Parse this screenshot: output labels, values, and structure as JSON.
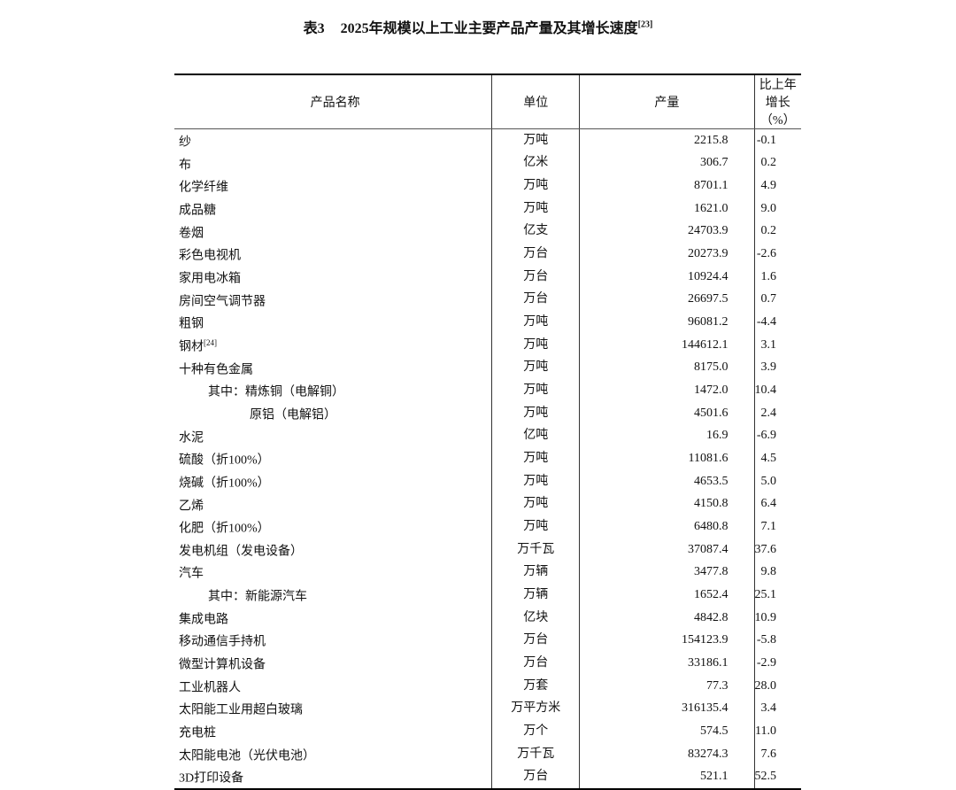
{
  "title": {
    "number": "表3",
    "text": "2025年规模以上工业主要产品产量及其增长速度",
    "note": "[23]"
  },
  "headers": [
    "产品名称",
    "单位",
    "产量",
    "比上年增长（%）"
  ],
  "rows": [
    {
      "name": "纱",
      "note": "",
      "indent": 0,
      "unit": "万吨",
      "output": "2215.8",
      "growth": "-0.1"
    },
    {
      "name": "布",
      "note": "",
      "indent": 0,
      "unit": "亿米",
      "output": "306.7",
      "growth": "0.2"
    },
    {
      "name": "化学纤维",
      "note": "",
      "indent": 0,
      "unit": "万吨",
      "output": "8701.1",
      "growth": "4.9"
    },
    {
      "name": "成品糖",
      "note": "",
      "indent": 0,
      "unit": "万吨",
      "output": "1621.0",
      "growth": "9.0"
    },
    {
      "name": "卷烟",
      "note": "",
      "indent": 0,
      "unit": "亿支",
      "output": "24703.9",
      "growth": "0.2"
    },
    {
      "name": "彩色电视机",
      "note": "",
      "indent": 0,
      "unit": "万台",
      "output": "20273.9",
      "growth": "-2.6"
    },
    {
      "name": "家用电冰箱",
      "note": "",
      "indent": 0,
      "unit": "万台",
      "output": "10924.4",
      "growth": "1.6"
    },
    {
      "name": "房间空气调节器",
      "note": "",
      "indent": 0,
      "unit": "万台",
      "output": "26697.5",
      "growth": "0.7"
    },
    {
      "name": "粗钢",
      "note": "",
      "indent": 0,
      "unit": "万吨",
      "output": "96081.2",
      "growth": "-4.4"
    },
    {
      "name": "钢材",
      "note": "[24]",
      "indent": 0,
      "unit": "万吨",
      "output": "144612.1",
      "growth": "3.1"
    },
    {
      "name": "十种有色金属",
      "note": "",
      "indent": 0,
      "unit": "万吨",
      "output": "8175.0",
      "growth": "3.9"
    },
    {
      "name": "其中：精炼铜（电解铜）",
      "note": "",
      "indent": 1,
      "unit": "万吨",
      "output": "1472.0",
      "growth": "10.4"
    },
    {
      "name": "原铝（电解铝）",
      "note": "",
      "indent": 2,
      "unit": "万吨",
      "output": "4501.6",
      "growth": "2.4"
    },
    {
      "name": "水泥",
      "note": "",
      "indent": 0,
      "unit": "亿吨",
      "output": "16.9",
      "growth": "-6.9"
    },
    {
      "name": "硫酸（折100%）",
      "note": "",
      "indent": 0,
      "unit": "万吨",
      "output": "11081.6",
      "growth": "4.5"
    },
    {
      "name": "烧碱（折100%）",
      "note": "",
      "indent": 0,
      "unit": "万吨",
      "output": "4653.5",
      "growth": "5.0"
    },
    {
      "name": "乙烯",
      "note": "",
      "indent": 0,
      "unit": "万吨",
      "output": "4150.8",
      "growth": "6.4"
    },
    {
      "name": "化肥（折100%）",
      "note": "",
      "indent": 0,
      "unit": "万吨",
      "output": "6480.8",
      "growth": "7.1"
    },
    {
      "name": "发电机组（发电设备）",
      "note": "",
      "indent": 0,
      "unit": "万千瓦",
      "output": "37087.4",
      "growth": "37.6"
    },
    {
      "name": "汽车",
      "note": "",
      "indent": 0,
      "unit": "万辆",
      "output": "3477.8",
      "growth": "9.8"
    },
    {
      "name": "其中：新能源汽车",
      "note": "",
      "indent": 1,
      "unit": "万辆",
      "output": "1652.4",
      "growth": "25.1"
    },
    {
      "name": "集成电路",
      "note": "",
      "indent": 0,
      "unit": "亿块",
      "output": "4842.8",
      "growth": "10.9"
    },
    {
      "name": "移动通信手持机",
      "note": "",
      "indent": 0,
      "unit": "万台",
      "output": "154123.9",
      "growth": "-5.8"
    },
    {
      "name": "微型计算机设备",
      "note": "",
      "indent": 0,
      "unit": "万台",
      "output": "33186.1",
      "growth": "-2.9"
    },
    {
      "name": "工业机器人",
      "note": "",
      "indent": 0,
      "unit": "万套",
      "output": "77.3",
      "growth": "28.0"
    },
    {
      "name": "太阳能工业用超白玻璃",
      "note": "",
      "indent": 0,
      "unit": "万平方米",
      "output": "316135.4",
      "growth": "3.4"
    },
    {
      "name": "充电桩",
      "note": "",
      "indent": 0,
      "unit": "万个",
      "output": "574.5",
      "growth": "11.0"
    },
    {
      "name": "太阳能电池（光伏电池）",
      "note": "",
      "indent": 0,
      "unit": "万千瓦",
      "output": "83274.3",
      "growth": "7.6"
    },
    {
      "name": "3D打印设备",
      "note": "",
      "indent": 0,
      "unit": "万台",
      "output": "521.1",
      "growth": "52.5"
    }
  ]
}
